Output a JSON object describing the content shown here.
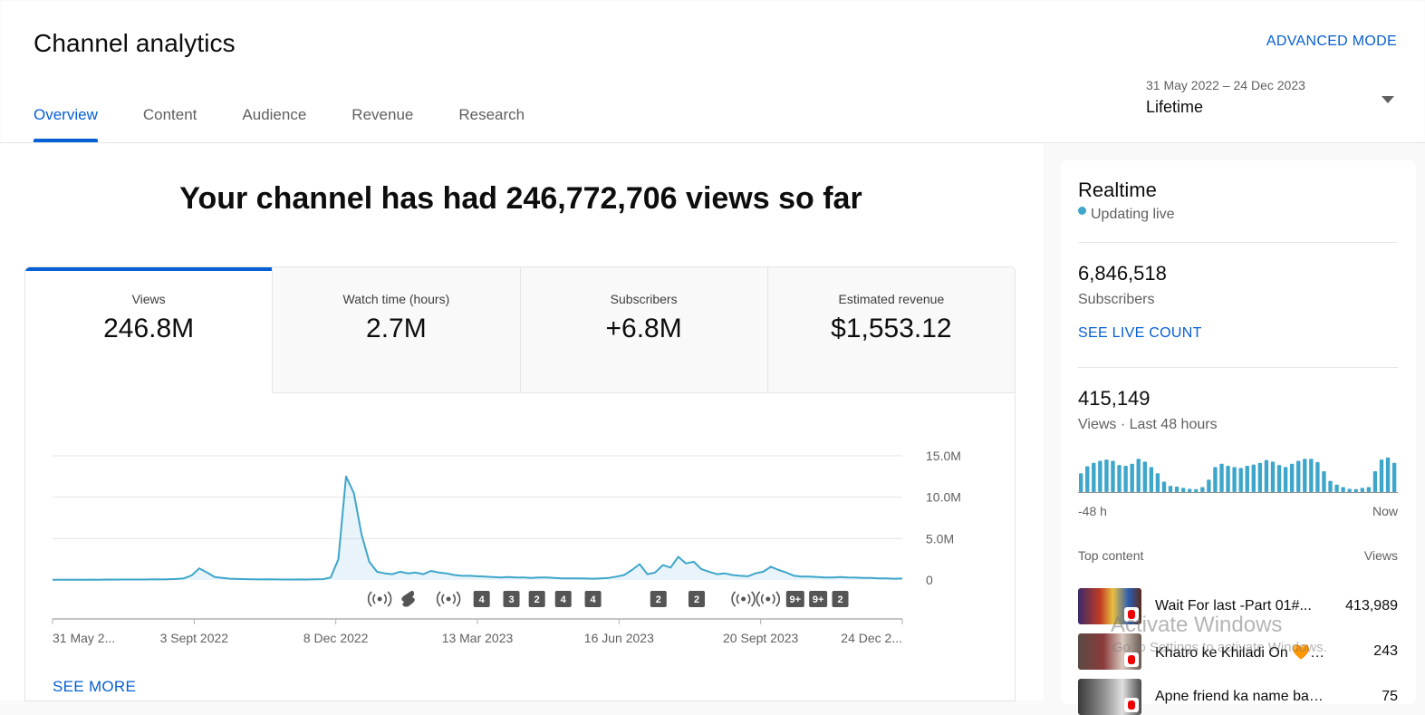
{
  "header": {
    "title": "Channel analytics",
    "advanced_mode": "ADVANCED MODE",
    "tabs": [
      {
        "label": "Overview",
        "active": true
      },
      {
        "label": "Content",
        "active": false
      },
      {
        "label": "Audience",
        "active": false
      },
      {
        "label": "Revenue",
        "active": false
      },
      {
        "label": "Research",
        "active": false
      }
    ],
    "date_range": "31 May 2022 – 24 Dec 2023",
    "date_preset": "Lifetime"
  },
  "overview": {
    "headline": "Your channel has had 246,772,706 views so far",
    "metrics": [
      {
        "label": "Views",
        "value": "246.8M",
        "active": true
      },
      {
        "label": "Watch time (hours)",
        "value": "2.7M",
        "active": false
      },
      {
        "label": "Subscribers",
        "value": "+6.8M",
        "active": false
      },
      {
        "label": "Estimated revenue",
        "value": "$1,553.12",
        "active": false
      }
    ],
    "see_more": "SEE MORE"
  },
  "chart_data": {
    "type": "area",
    "series": [
      {
        "values": [
          0.02,
          0.03,
          0.02,
          0.03,
          0.02,
          0.04,
          0.03,
          0.05,
          0.04,
          0.05,
          0.06,
          0.05,
          0.06,
          0.08,
          0.07,
          0.09,
          0.12,
          0.2,
          0.55,
          1.4,
          0.9,
          0.35,
          0.25,
          0.15,
          0.12,
          0.1,
          0.08,
          0.07,
          0.08,
          0.07,
          0.06,
          0.06,
          0.07,
          0.06,
          0.08,
          0.1,
          0.3,
          2.5,
          12.5,
          10.5,
          5.5,
          2.2,
          1.0,
          0.8,
          0.7,
          1.0,
          0.8,
          0.9,
          0.7,
          1.1,
          0.9,
          0.8,
          0.6,
          0.5,
          0.5,
          0.45,
          0.4,
          0.35,
          0.3,
          0.35,
          0.3,
          0.3,
          0.25,
          0.3,
          0.3,
          0.25,
          0.2,
          0.2,
          0.2,
          0.18,
          0.15,
          0.2,
          0.25,
          0.4,
          0.6,
          1.2,
          1.9,
          0.7,
          0.9,
          1.8,
          1.5,
          2.8,
          2.0,
          2.2,
          1.3,
          1.0,
          0.7,
          0.8,
          0.6,
          0.5,
          0.45,
          0.8,
          1.0,
          1.6,
          1.2,
          0.9,
          0.5,
          0.4,
          0.4,
          0.35,
          0.3,
          0.3,
          0.35,
          0.3,
          0.28,
          0.25,
          0.25,
          0.2,
          0.2,
          0.15,
          0.18
        ]
      }
    ],
    "x_tick_labels": [
      "31 May 2...",
      "3 Sept 2022",
      "8 Dec 2022",
      "13 Mar 2023",
      "16 Jun 2023",
      "20 Sept 2023",
      "24 Dec 2..."
    ],
    "y_tick_labels": [
      "15.0M",
      "10.0M",
      "5.0M",
      "0"
    ],
    "y_ticks": [
      15,
      10,
      5,
      0
    ],
    "ylim": [
      0,
      15
    ],
    "grid": true,
    "color": "#3ea6ca",
    "markers": [
      {
        "kind": "live",
        "label": "(•)",
        "x": 0.385
      },
      {
        "kind": "short",
        "label": "S",
        "x": 0.418
      },
      {
        "kind": "live",
        "label": "(•)",
        "x": 0.466
      },
      {
        "kind": "count",
        "label": "4",
        "x": 0.505
      },
      {
        "kind": "count",
        "label": "3",
        "x": 0.54
      },
      {
        "kind": "count",
        "label": "2",
        "x": 0.57
      },
      {
        "kind": "count",
        "label": "4",
        "x": 0.601
      },
      {
        "kind": "count",
        "label": "4",
        "x": 0.636
      },
      {
        "kind": "count",
        "label": "2",
        "x": 0.713
      },
      {
        "kind": "count",
        "label": "2",
        "x": 0.758
      },
      {
        "kind": "live",
        "label": "(•)",
        "x": 0.813
      },
      {
        "kind": "live",
        "label": "(•)",
        "x": 0.842
      },
      {
        "kind": "count",
        "label": "9+",
        "x": 0.874
      },
      {
        "kind": "count",
        "label": "9+",
        "x": 0.901
      },
      {
        "kind": "count",
        "label": "2",
        "x": 0.927
      }
    ]
  },
  "realtime": {
    "title": "Realtime",
    "status": "Updating live",
    "subscribers_value": "6,846,518",
    "subscribers_label": "Subscribers",
    "see_live_count": "SEE LIVE COUNT",
    "views_value": "415,149",
    "views_label": "Views · Last 48 hours",
    "mini_chart": {
      "type": "bar",
      "values": [
        0.45,
        0.62,
        0.7,
        0.75,
        0.78,
        0.75,
        0.65,
        0.63,
        0.68,
        0.8,
        0.73,
        0.6,
        0.45,
        0.25,
        0.15,
        0.13,
        0.1,
        0.08,
        0.07,
        0.12,
        0.3,
        0.6,
        0.68,
        0.63,
        0.6,
        0.58,
        0.63,
        0.66,
        0.7,
        0.77,
        0.73,
        0.65,
        0.6,
        0.68,
        0.75,
        0.8,
        0.8,
        0.72,
        0.5,
        0.27,
        0.18,
        0.12,
        0.08,
        0.07,
        0.1,
        0.12,
        0.5,
        0.78,
        0.83,
        0.7
      ],
      "color": "#3ea6ca",
      "x_start_label": "-48 h",
      "x_end_label": "Now"
    },
    "top_content_label": "Top content",
    "views_col_label": "Views",
    "top_content": [
      {
        "title": "Wait For last -Part 01#...",
        "views": "413,989"
      },
      {
        "title": "Khatro ke Khiladi On 🧡Diw...",
        "views": "243"
      },
      {
        "title": "Apne friend ka name batao i...",
        "views": "75"
      }
    ]
  },
  "watermark": {
    "title": "Activate Windows",
    "subtitle": "Go to Settings to activate Windows."
  }
}
